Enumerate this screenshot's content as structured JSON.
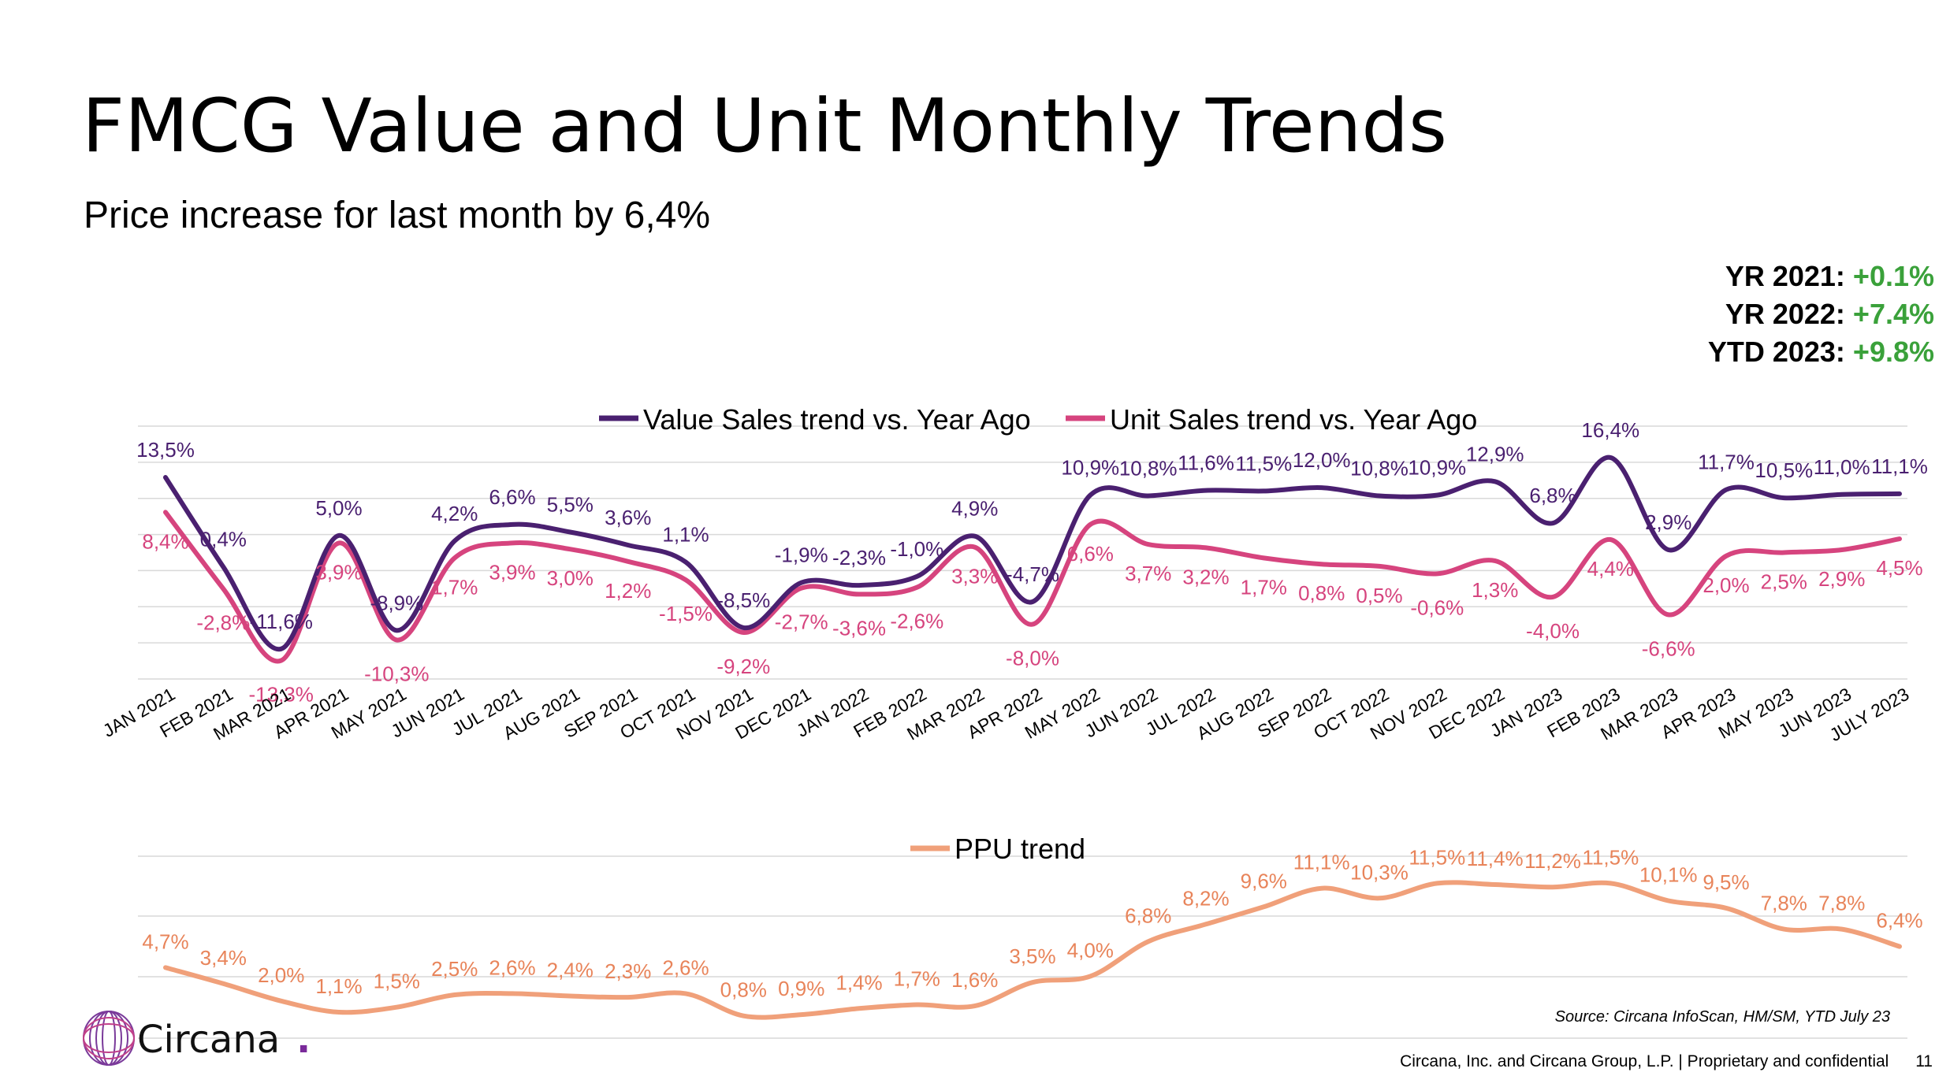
{
  "header": {
    "title": "FMCG Value and Unit Monthly Trends",
    "subtitle": "Price increase for last month by 6,4%"
  },
  "yearly": [
    {
      "label": "YR 2021:",
      "value": "+0.1%"
    },
    {
      "label": "YR 2022:",
      "value": "+7.4%"
    },
    {
      "label": "YTD 2023:",
      "value": "+9.8%"
    }
  ],
  "colors": {
    "value_series": "#4a2070",
    "unit_series": "#d6447e",
    "ppu_series": "#f0a07a",
    "grid": "#d9d9d9",
    "positive": "#3aa13a"
  },
  "chart_data": [
    {
      "type": "line",
      "categories": [
        "JAN 2021",
        "FEB 2021",
        "MAR 2021",
        "APR 2021",
        "MAY 2021",
        "JUN 2021",
        "JUL 2021",
        "AUG 2021",
        "SEP 2021",
        "OCT 2021",
        "NOV 2021",
        "DEC 2021",
        "JAN 2022",
        "FEB 2022",
        "MAR 2022",
        "APR 2022",
        "MAY 2022",
        "JUN 2022",
        "JUL 2022",
        "AUG 2022",
        "SEP 2022",
        "OCT 2022",
        "NOV 2022",
        "DEC 2022",
        "JAN 2023",
        "FEB 2023",
        "MAR 2023",
        "APR 2023",
        "MAY 2023",
        "JUN 2023",
        "JULY 2023"
      ],
      "legend_position": "top-center",
      "grid": true,
      "series": [
        {
          "name": "Value Sales trend vs. Year Ago",
          "values": [
            13.5,
            0.4,
            -11.6,
            5.0,
            -8.9,
            4.2,
            6.6,
            5.5,
            3.6,
            1.1,
            -8.5,
            -1.9,
            -2.3,
            -1.0,
            4.9,
            -4.7,
            10.9,
            10.8,
            11.6,
            11.5,
            12.0,
            10.8,
            10.9,
            12.9,
            6.8,
            16.4,
            2.9,
            11.7,
            10.5,
            11.0,
            11.1
          ],
          "labels": [
            "13,5%",
            "0,4%",
            "-11,6%",
            "5,0%",
            "-8,9%",
            "4,2%",
            "6,6%",
            "5,5%",
            "3,6%",
            "1,1%",
            "-8,5%",
            "-1,9%",
            "-2,3%",
            "-1,0%",
            "4,9%",
            "-4,7%",
            "10,9%",
            "10,8%",
            "11,6%",
            "11,5%",
            "12,0%",
            "10,8%",
            "10,9%",
            "12,9%",
            "6,8%",
            "16,4%",
            "2,9%",
            "11,7%",
            "10,5%",
            "11,0%",
            "11,1%"
          ]
        },
        {
          "name": "Unit Sales trend vs. Year Ago",
          "values": [
            8.4,
            -2.8,
            -13.3,
            3.9,
            -10.3,
            1.7,
            3.9,
            3.0,
            1.2,
            -1.5,
            -9.2,
            -2.7,
            -3.6,
            -2.6,
            3.3,
            -8.0,
            6.6,
            3.7,
            3.2,
            1.7,
            0.8,
            0.5,
            -0.6,
            1.3,
            -4.0,
            4.4,
            -6.6,
            2.0,
            2.5,
            2.9,
            4.5
          ],
          "labels": [
            "8,4%",
            "-2,8%",
            "-13,3%",
            "3,9%",
            "-10,3%",
            "1,7%",
            "3,9%",
            "3,0%",
            "1,2%",
            "-1,5%",
            "-9,2%",
            "-2,7%",
            "-3,6%",
            "-2,6%",
            "3,3%",
            "-8,0%",
            "6,6%",
            "3,7%",
            "3,2%",
            "1,7%",
            "0,8%",
            "0,5%",
            "-0,6%",
            "1,3%",
            "-4,0%",
            "4,4%",
            "-6,6%",
            "2,0%",
            "2,5%",
            "2,9%",
            "4,5%"
          ]
        }
      ]
    },
    {
      "type": "line",
      "legend_position": "top-center",
      "grid": true,
      "series": [
        {
          "name": "PPU trend",
          "values": [
            4.7,
            3.4,
            2.0,
            1.1,
            1.5,
            2.5,
            2.6,
            2.4,
            2.3,
            2.6,
            0.8,
            0.9,
            1.4,
            1.7,
            1.6,
            3.5,
            4.0,
            6.8,
            8.2,
            9.6,
            11.1,
            10.3,
            11.5,
            11.4,
            11.2,
            11.5,
            10.1,
            9.5,
            7.8,
            7.8,
            6.4
          ],
          "labels": [
            "4,7%",
            "3,4%",
            "2,0%",
            "1,1%",
            "1,5%",
            "2,5%",
            "2,6%",
            "2,4%",
            "2,3%",
            "2,6%",
            "0,8%",
            "0,9%",
            "1,4%",
            "1,7%",
            "1,6%",
            "3,5%",
            "4,0%",
            "6,8%",
            "8,2%",
            "9,6%",
            "11,1%",
            "10,3%",
            "11,5%",
            "11,4%",
            "11,2%",
            "11,5%",
            "10,1%",
            "9,5%",
            "7,8%",
            "7,8%",
            "6,4%"
          ]
        }
      ]
    }
  ],
  "logo": {
    "text": "Circana",
    "dot": "."
  },
  "source": "Source: Circana InfoScan, HM/SM, YTD July 23",
  "footer": {
    "text": "Circana, Inc. and Circana Group, L.P. |  Proprietary and confidential",
    "page": "11"
  }
}
